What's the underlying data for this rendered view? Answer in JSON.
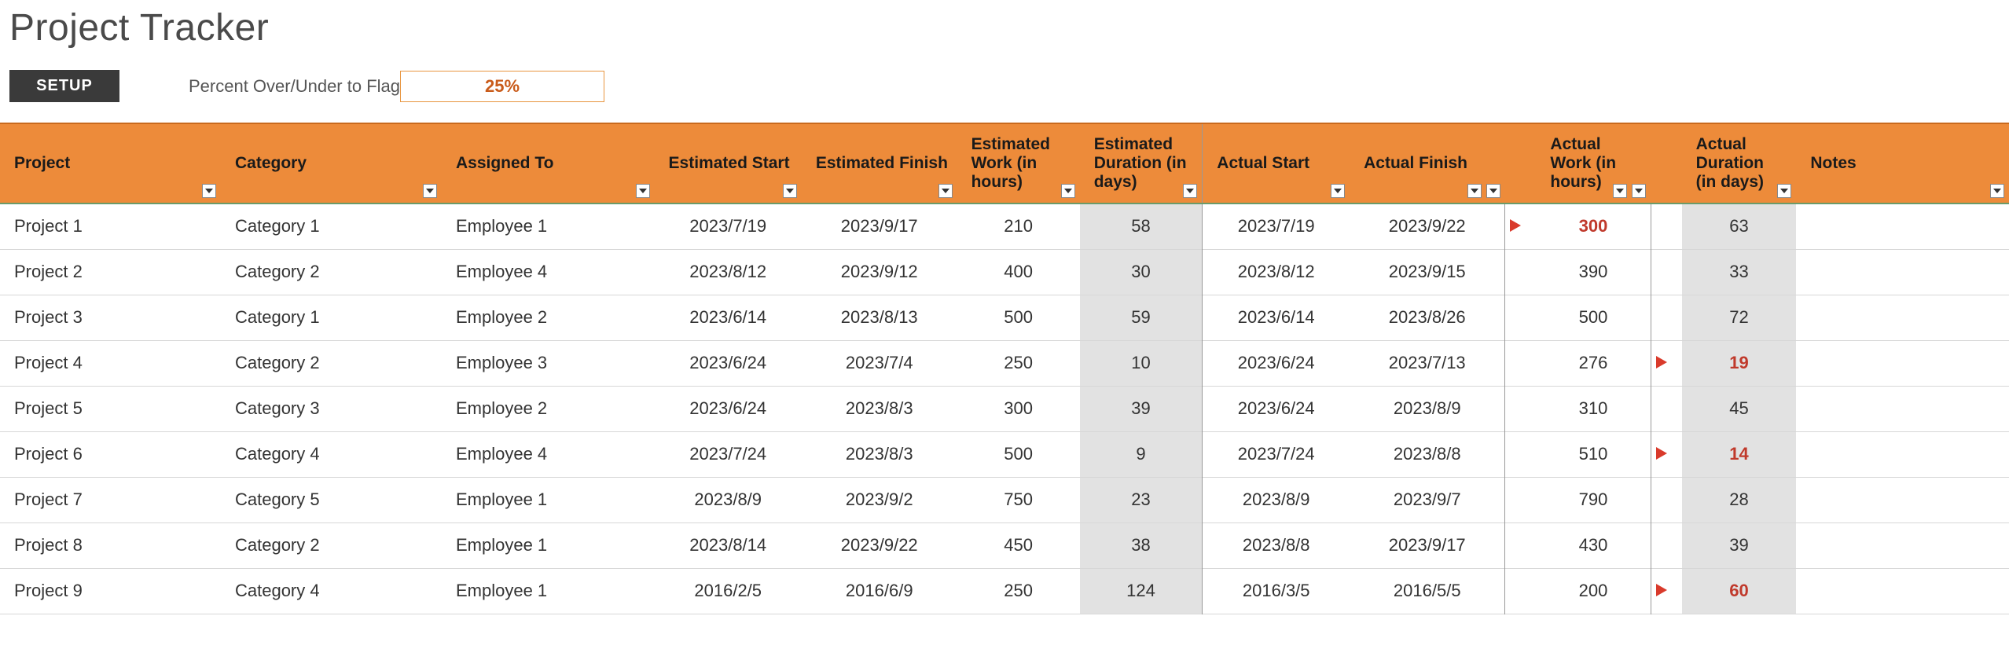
{
  "title": "Project Tracker",
  "controls": {
    "setup_label": "SETUP",
    "flag_label": "Percent Over/Under to Flag",
    "flag_value": "25%"
  },
  "colors": {
    "header_bg": "#ed8b3a",
    "header_border_top": "#c96a1e",
    "setup_bg": "#3a3a3a",
    "flag_border": "#e8953f",
    "flag_text": "#c95b1a",
    "shaded_bg": "#e2e2e2",
    "over_text": "#c0392b",
    "flag_icon": "#d93a2b",
    "row_border": "#d7d7d7",
    "first_row_top": "#6a9b6a"
  },
  "columns": [
    {
      "key": "project",
      "label": "Project",
      "class": "c-project"
    },
    {
      "key": "category",
      "label": "Category",
      "class": "c-category"
    },
    {
      "key": "assigned",
      "label": "Assigned To",
      "class": "c-assigned"
    },
    {
      "key": "eststart",
      "label": "Estimated Start",
      "class": "c-eststart"
    },
    {
      "key": "estfinish",
      "label": "Estimated Finish",
      "class": "c-estfinish"
    },
    {
      "key": "estwork",
      "label": "Estimated Work (in hours)",
      "class": "c-estwork"
    },
    {
      "key": "estdur",
      "label": "Estimated Duration (in days)",
      "class": "c-estdur"
    },
    {
      "key": "actstart",
      "label": "Actual Start",
      "class": "c-actstart"
    },
    {
      "key": "actfinish",
      "label": "Actual Finish",
      "class": "c-actfinish"
    },
    {
      "key": "flag1",
      "label": "",
      "class": "c-flag1"
    },
    {
      "key": "actwork",
      "label": "Actual Work (in hours)",
      "class": "c-actwork"
    },
    {
      "key": "flag2",
      "label": "",
      "class": "c-flag2"
    },
    {
      "key": "actdur",
      "label": "Actual Duration (in days)",
      "class": "c-actdur"
    },
    {
      "key": "notes",
      "label": "Notes",
      "class": "c-notes"
    }
  ],
  "rows": [
    {
      "project": "Project 1",
      "category": "Category 1",
      "assigned": "Employee 1",
      "eststart": "2023/7/19",
      "estfinish": "2023/9/17",
      "estwork": "210",
      "estdur": "58",
      "actstart": "2023/7/19",
      "actfinish": "2023/9/22",
      "flag_work": true,
      "actwork": "300",
      "actwork_over": true,
      "flag_dur": false,
      "actdur": "63",
      "actdur_over": false,
      "notes": ""
    },
    {
      "project": "Project 2",
      "category": "Category 2",
      "assigned": "Employee 4",
      "eststart": "2023/8/12",
      "estfinish": "2023/9/12",
      "estwork": "400",
      "estdur": "30",
      "actstart": "2023/8/12",
      "actfinish": "2023/9/15",
      "flag_work": false,
      "actwork": "390",
      "actwork_over": false,
      "flag_dur": false,
      "actdur": "33",
      "actdur_over": false,
      "notes": ""
    },
    {
      "project": "Project 3",
      "category": "Category 1",
      "assigned": "Employee 2",
      "eststart": "2023/6/14",
      "estfinish": "2023/8/13",
      "estwork": "500",
      "estdur": "59",
      "actstart": "2023/6/14",
      "actfinish": "2023/8/26",
      "flag_work": false,
      "actwork": "500",
      "actwork_over": false,
      "flag_dur": false,
      "actdur": "72",
      "actdur_over": false,
      "notes": ""
    },
    {
      "project": "Project 4",
      "category": "Category 2",
      "assigned": "Employee 3",
      "eststart": "2023/6/24",
      "estfinish": "2023/7/4",
      "estwork": "250",
      "estdur": "10",
      "actstart": "2023/6/24",
      "actfinish": "2023/7/13",
      "flag_work": false,
      "actwork": "276",
      "actwork_over": false,
      "flag_dur": true,
      "actdur": "19",
      "actdur_over": true,
      "notes": ""
    },
    {
      "project": "Project 5",
      "category": "Category 3",
      "assigned": "Employee 2",
      "eststart": "2023/6/24",
      "estfinish": "2023/8/3",
      "estwork": "300",
      "estdur": "39",
      "actstart": "2023/6/24",
      "actfinish": "2023/8/9",
      "flag_work": false,
      "actwork": "310",
      "actwork_over": false,
      "flag_dur": false,
      "actdur": "45",
      "actdur_over": false,
      "notes": ""
    },
    {
      "project": "Project 6",
      "category": "Category 4",
      "assigned": "Employee 4",
      "eststart": "2023/7/24",
      "estfinish": "2023/8/3",
      "estwork": "500",
      "estdur": "9",
      "actstart": "2023/7/24",
      "actfinish": "2023/8/8",
      "flag_work": false,
      "actwork": "510",
      "actwork_over": false,
      "flag_dur": true,
      "actdur": "14",
      "actdur_over": true,
      "notes": ""
    },
    {
      "project": "Project 7",
      "category": "Category 5",
      "assigned": "Employee 1",
      "eststart": "2023/8/9",
      "estfinish": "2023/9/2",
      "estwork": "750",
      "estdur": "23",
      "actstart": "2023/8/9",
      "actfinish": "2023/9/7",
      "flag_work": false,
      "actwork": "790",
      "actwork_over": false,
      "flag_dur": false,
      "actdur": "28",
      "actdur_over": false,
      "notes": ""
    },
    {
      "project": "Project 8",
      "category": "Category 2",
      "assigned": "Employee 1",
      "eststart": "2023/8/14",
      "estfinish": "2023/9/22",
      "estwork": "450",
      "estdur": "38",
      "actstart": "2023/8/8",
      "actfinish": "2023/9/17",
      "flag_work": false,
      "actwork": "430",
      "actwork_over": false,
      "flag_dur": false,
      "actdur": "39",
      "actdur_over": false,
      "notes": ""
    },
    {
      "project": "Project 9",
      "category": "Category 4",
      "assigned": "Employee 1",
      "eststart": "2016/2/5",
      "estfinish": "2016/6/9",
      "estwork": "250",
      "estdur": "124",
      "actstart": "2016/3/5",
      "actfinish": "2016/5/5",
      "flag_work": false,
      "actwork": "200",
      "actwork_over": false,
      "flag_dur": true,
      "actdur": "60",
      "actdur_over": true,
      "notes": ""
    }
  ]
}
